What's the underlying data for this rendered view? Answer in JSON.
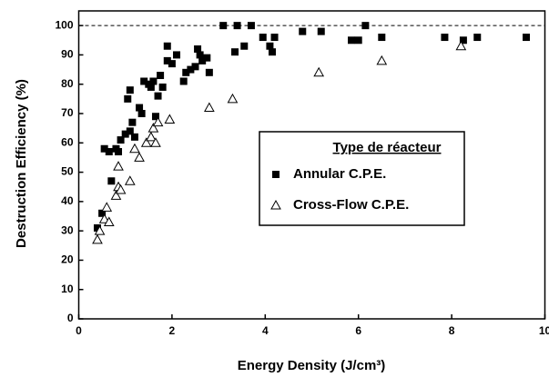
{
  "chart_data": {
    "type": "scatter",
    "xlabel": "Energy Density (J/cm³)",
    "ylabel": "Destruction Efficiency (%)",
    "xlim": [
      0,
      10
    ],
    "ylim": [
      0,
      105
    ],
    "xticks": [
      0,
      2,
      4,
      6,
      8,
      10
    ],
    "yticks": [
      0,
      10,
      20,
      30,
      40,
      50,
      60,
      70,
      80,
      90,
      100
    ],
    "reference_line": 100,
    "legend_title": "Type de réacteur",
    "legend_position": "center-right",
    "series": [
      {
        "name": "Annular C.P.E.",
        "color": "#000000",
        "marker": "square",
        "x": [
          0.4,
          0.5,
          0.55,
          0.65,
          0.7,
          0.8,
          0.85,
          0.9,
          1.0,
          1.05,
          1.1,
          1.1,
          1.15,
          1.2,
          1.3,
          1.35,
          1.4,
          1.5,
          1.55,
          1.6,
          1.65,
          1.7,
          1.75,
          1.8,
          1.9,
          1.9,
          2.0,
          2.1,
          2.25,
          2.3,
          2.4,
          2.5,
          2.55,
          2.6,
          2.65,
          2.75,
          2.8,
          3.1,
          3.35,
          3.4,
          3.55,
          3.7,
          3.95,
          4.1,
          4.15,
          4.2,
          4.8,
          5.2,
          5.85,
          6.0,
          6.15,
          6.5,
          7.85,
          8.25,
          8.55,
          9.6
        ],
        "values": [
          31,
          36,
          58,
          57,
          47,
          58,
          57,
          61,
          63,
          75,
          64,
          78,
          67,
          62,
          72,
          70,
          81,
          80,
          79,
          81,
          69,
          76,
          83,
          79,
          88,
          93,
          87,
          90,
          81,
          84,
          85,
          86,
          92,
          90,
          88,
          89,
          84,
          100,
          91,
          100,
          93,
          100,
          96,
          93,
          91,
          96,
          98,
          98,
          95,
          95,
          100,
          96,
          96,
          95,
          96,
          96
        ]
      },
      {
        "name": "Cross-Flow C.P.E.",
        "color": "#000000",
        "marker": "triangle",
        "x": [
          0.4,
          0.45,
          0.55,
          0.6,
          0.65,
          0.8,
          0.85,
          0.85,
          0.9,
          1.1,
          1.2,
          1.3,
          1.45,
          1.55,
          1.6,
          1.65,
          1.7,
          1.95,
          2.8,
          3.3,
          5.15,
          6.5,
          8.2
        ],
        "values": [
          27,
          30,
          34,
          38,
          33,
          42,
          45,
          52,
          44,
          47,
          58,
          55,
          60,
          62,
          65,
          60,
          67,
          68,
          72,
          75,
          84,
          88,
          93
        ]
      }
    ]
  }
}
